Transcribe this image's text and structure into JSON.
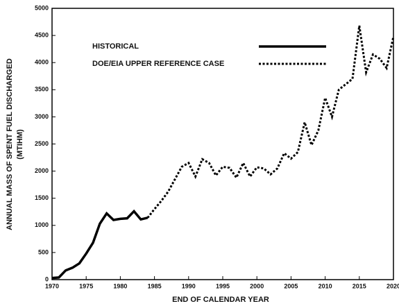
{
  "chart_data": {
    "type": "line",
    "xlabel": "END OF CALENDAR YEAR",
    "ylabel": [
      "ANNUAL MASS OF SPENT FUEL DISCHARGED",
      "(MTIHM)"
    ],
    "x": [
      1970,
      1971,
      1972,
      1973,
      1974,
      1975,
      1976,
      1977,
      1978,
      1979,
      1980,
      1981,
      1982,
      1983,
      1984,
      1985,
      1986,
      1987,
      1988,
      1989,
      1990,
      1991,
      1992,
      1993,
      1994,
      1995,
      1996,
      1997,
      1998,
      1999,
      2000,
      2001,
      2002,
      2003,
      2004,
      2005,
      2006,
      2007,
      2008,
      2009,
      2010,
      2011,
      2012,
      2013,
      2014,
      2015,
      2016,
      2017,
      2018,
      2019,
      2020
    ],
    "series": [
      {
        "name": "HISTORICAL",
        "color": "#000000",
        "dashed": false,
        "values": [
          30,
          40,
          170,
          220,
          300,
          480,
          680,
          1030,
          1220,
          1100,
          1120,
          1130,
          1260,
          1110,
          1140,
          null,
          null,
          null,
          null,
          null,
          null,
          null,
          null,
          null,
          null,
          null,
          null,
          null,
          null,
          null,
          null,
          null,
          null,
          null,
          null,
          null,
          null,
          null,
          null,
          null,
          null,
          null,
          null,
          null,
          null,
          null,
          null,
          null,
          null,
          null,
          null
        ]
      },
      {
        "name": "DOE/EIA UPPER REFERENCE CASE",
        "color": "#000000",
        "dashed": true,
        "values": [
          null,
          null,
          null,
          null,
          null,
          null,
          null,
          null,
          null,
          null,
          null,
          null,
          null,
          null,
          1140,
          1300,
          1450,
          1620,
          1850,
          2080,
          2150,
          1900,
          2220,
          2150,
          1920,
          2080,
          2060,
          1880,
          2150,
          1900,
          2070,
          2050,
          1940,
          2050,
          2330,
          2230,
          2350,
          2900,
          2480,
          2750,
          3350,
          3000,
          3500,
          3600,
          3700,
          4680,
          3820,
          4150,
          4070,
          3900,
          4480
        ]
      }
    ],
    "xlim": [
      1970,
      2020
    ],
    "xticks": [
      1970,
      1975,
      1980,
      1985,
      1990,
      1995,
      2000,
      2005,
      2010,
      2015,
      2020
    ],
    "ylim": [
      0,
      5000
    ],
    "yticks": [
      0,
      500,
      1000,
      1500,
      2000,
      2500,
      3000,
      3500,
      4000,
      4500,
      5000
    ],
    "grid": false
  }
}
